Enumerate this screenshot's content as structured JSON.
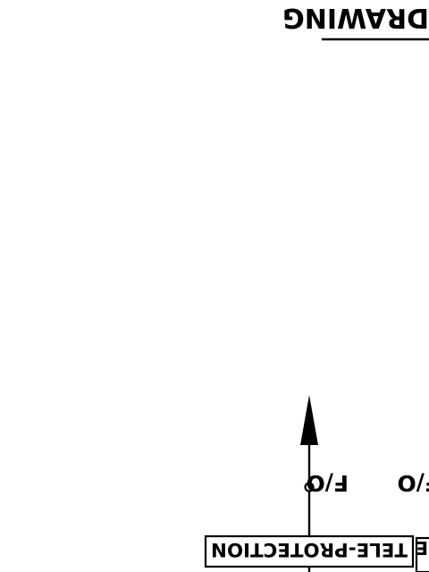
{
  "drawing": {
    "title_fragment": "DRAWING",
    "annotations": [
      {
        "text": "F/O"
      },
      {
        "text": "F/O"
      }
    ],
    "boxes": [
      {
        "label": "TELE-PROTECTION"
      },
      {
        "label": "E"
      }
    ],
    "colors": {
      "ink": "#000000",
      "paper": "#ffffff"
    }
  }
}
